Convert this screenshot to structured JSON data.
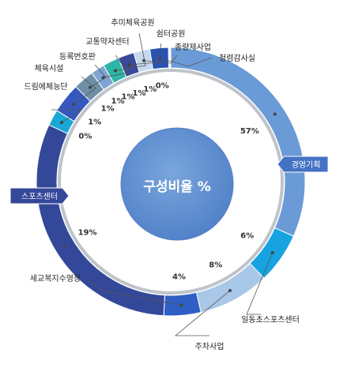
{
  "chart_data": {
    "type": "pie",
    "title": "구성비율 %",
    "series": [
      {
        "label": "경영기획",
        "value": 57,
        "pct_text": "57%",
        "color": "#6b9bd6"
      },
      {
        "label": "일동초스포츠센터",
        "value": 6,
        "pct_text": "6%",
        "color": "#16a3e0"
      },
      {
        "label": "주차사업",
        "value": 8,
        "pct_text": "8%",
        "color": "#a9c7e8"
      },
      {
        "label": "세교복지수영장",
        "value": 4,
        "pct_text": "4%",
        "color": "#2f5fc4"
      },
      {
        "label": "스포츠센터",
        "value": 19,
        "pct_text": "19%",
        "color": "#34489a"
      },
      {
        "label": "드림에체능단",
        "value": 0,
        "pct_text": "0%",
        "color": "#1aa6d6"
      },
      {
        "label": "체육시설",
        "value": 1,
        "pct_text": "1%",
        "color": "#3558c0"
      },
      {
        "label": "등록번호판",
        "value": 1,
        "pct_text": "1%",
        "color": "#6e8fa7"
      },
      {
        "label": "교통약자센터",
        "value": 1,
        "pct_text": "1%",
        "color": "#7ea4d4"
      },
      {
        "label": "추미체육공원",
        "value": 1,
        "pct_text": "1%",
        "color": "#2bb6a6"
      },
      {
        "label": "쉼터공원",
        "value": 1,
        "pct_text": "1%",
        "color": "#3a4a9a"
      },
      {
        "label": "종량제사업",
        "value": 1,
        "pct_text": "1%",
        "color": "#c6d9ef"
      },
      {
        "label": "청렴감사실",
        "value": 0,
        "pct_text": "0%",
        "color": "#2a52b0"
      }
    ]
  }
}
